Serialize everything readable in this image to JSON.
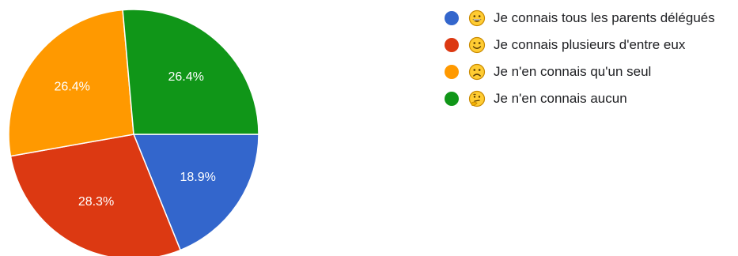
{
  "chart_data": {
    "type": "pie",
    "title": "",
    "slices": [
      {
        "emoji": "grinning-face",
        "label": "Je connais tous les parents délégués",
        "value": 18.9,
        "display": "18.9%",
        "color": "#3366cc"
      },
      {
        "emoji": "slightly-smiling-face",
        "label": "Je connais plusieurs d'entre eux",
        "value": 28.3,
        "display": "28.3%",
        "color": "#dc3912"
      },
      {
        "emoji": "slightly-frowning-face",
        "label": "Je n'en connais qu'un seul",
        "value": 26.4,
        "display": "26.4%",
        "color": "#ff9900"
      },
      {
        "emoji": "thinking-face",
        "label": "Je n'en connais aucun",
        "value": 26.4,
        "display": "26.4%",
        "color": "#109618"
      }
    ],
    "legend_position": "right",
    "start_angle_deg": 90,
    "direction": "clockwise"
  }
}
